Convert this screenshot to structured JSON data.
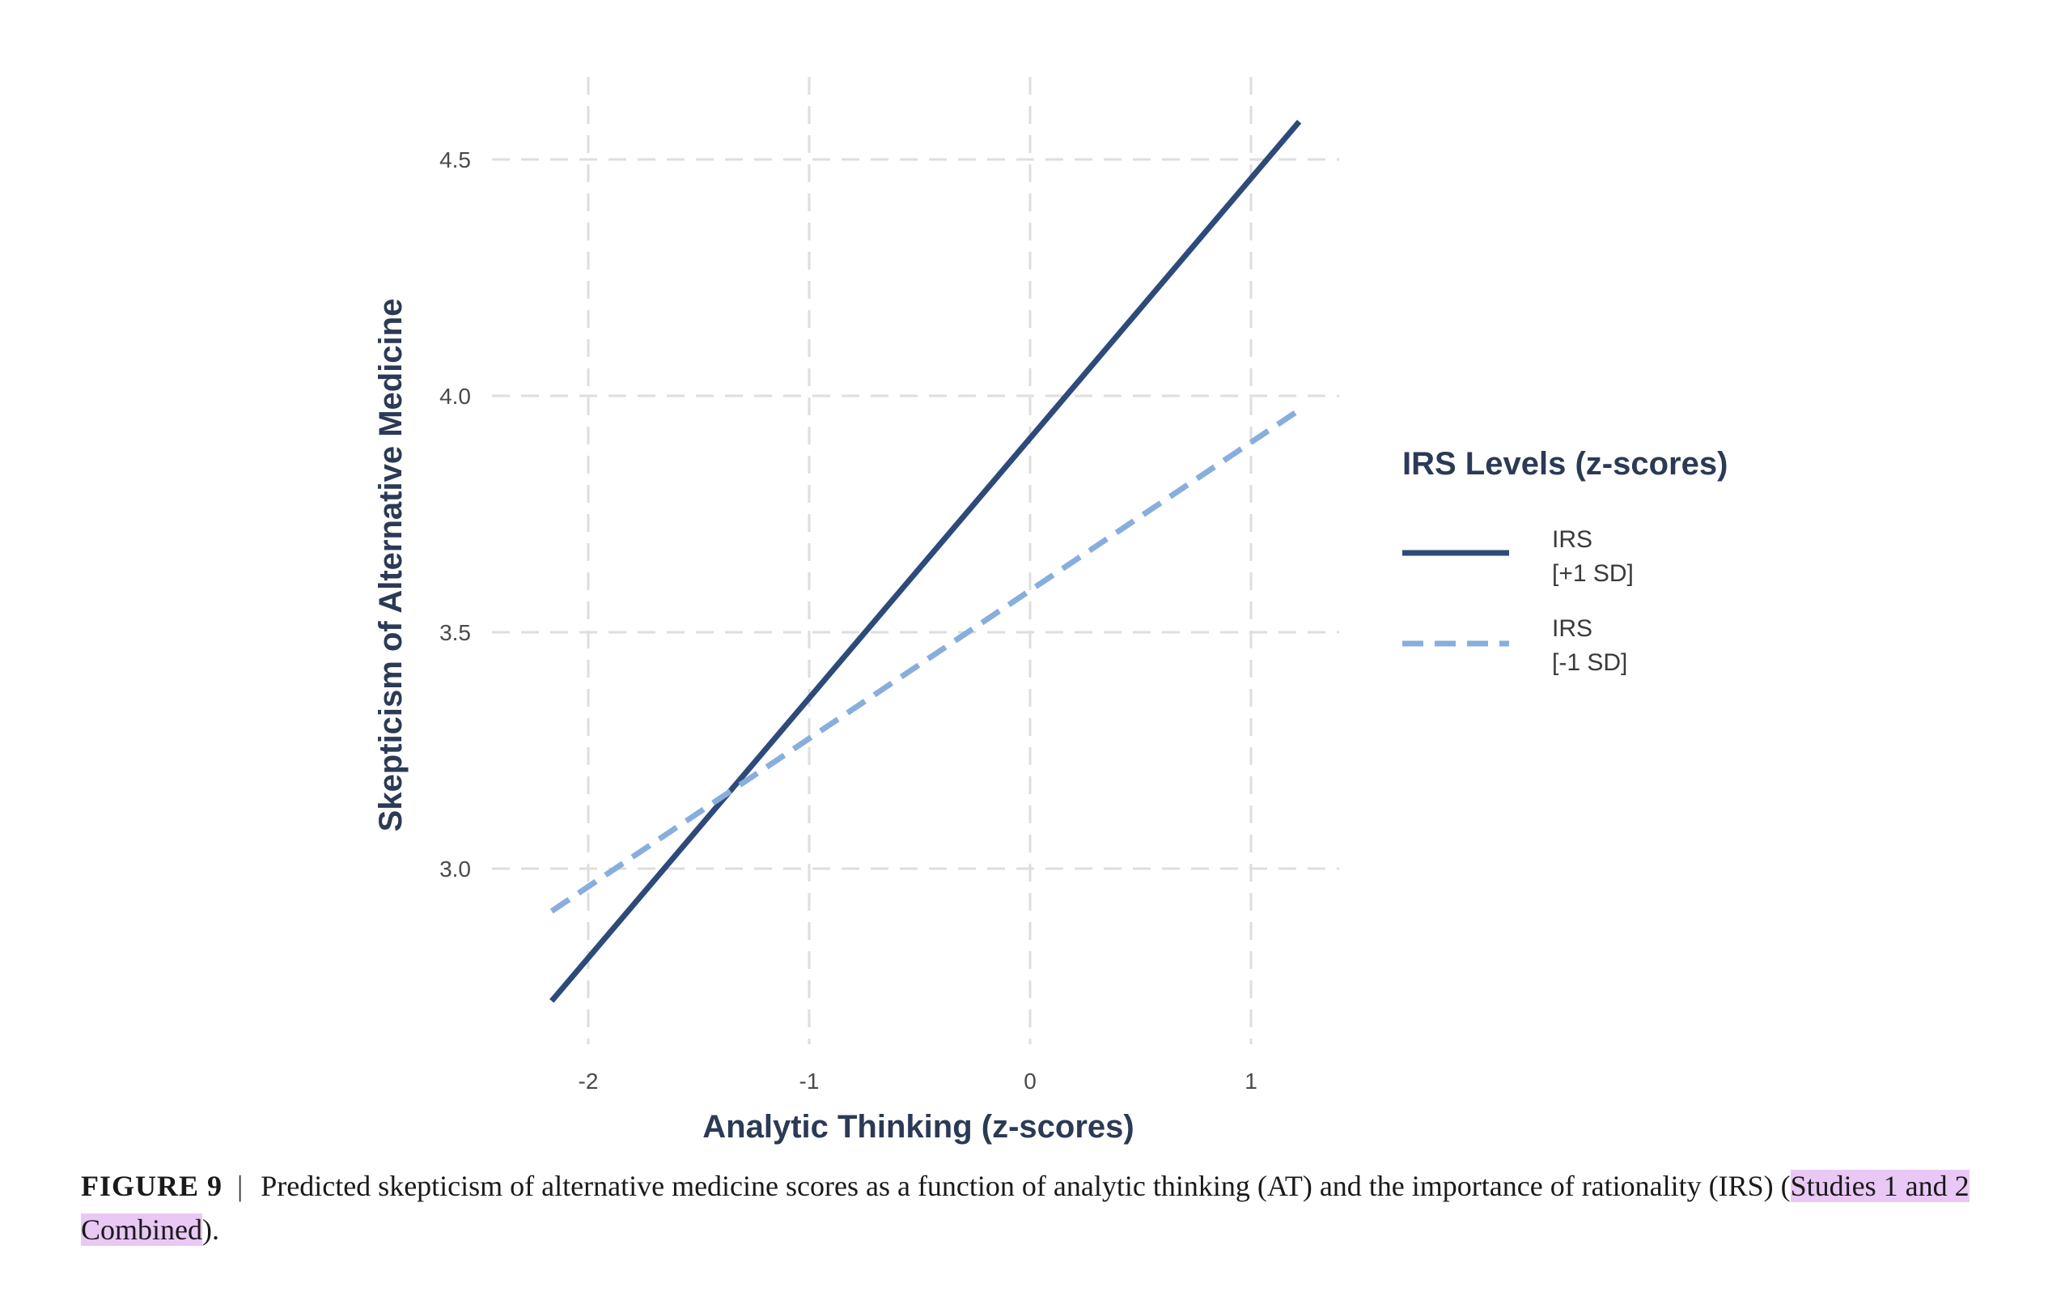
{
  "chart_data": {
    "type": "line",
    "xlabel": "Analytic Thinking (z-scores)",
    "ylabel": "Skepticism of Alternative Medicine",
    "xlim": [
      -2.25,
      1.38
    ],
    "ylim": [
      2.63,
      4.78
    ],
    "x_ticks": [
      -2,
      -1,
      0,
      1
    ],
    "x_tick_labels": [
      "-2",
      "-1",
      "0",
      "1"
    ],
    "y_ticks": [
      3.0,
      3.5,
      4.0,
      4.5
    ],
    "y_tick_labels": [
      "3.0",
      "3.5",
      "4.0",
      "4.5"
    ],
    "grid": true,
    "legend": {
      "title": "IRS Levels (z-scores)",
      "placement": "right",
      "entries": [
        {
          "line1": "IRS",
          "line2": "[+1 SD]"
        },
        {
          "line1": "IRS",
          "line2": "[-1 SD]"
        }
      ]
    },
    "series": [
      {
        "x": [
          -2.25,
          1.2
        ],
        "values": [
          2.72,
          4.58
        ],
        "style": "solid",
        "color": "#2e4a7a"
      },
      {
        "x": [
          -2.25,
          1.2
        ],
        "values": [
          2.91,
          3.97
        ],
        "style": "dashed",
        "color": "#88aedd"
      }
    ]
  },
  "caption": {
    "label": "FIGURE 9",
    "separator": "|",
    "text": "Predicted skepticism of alternative medicine scores as a function of analytic thinking (AT) and the importance of rationality (IRS) (",
    "highlight": "Studies 1 and 2 Combined",
    "end": ")."
  }
}
